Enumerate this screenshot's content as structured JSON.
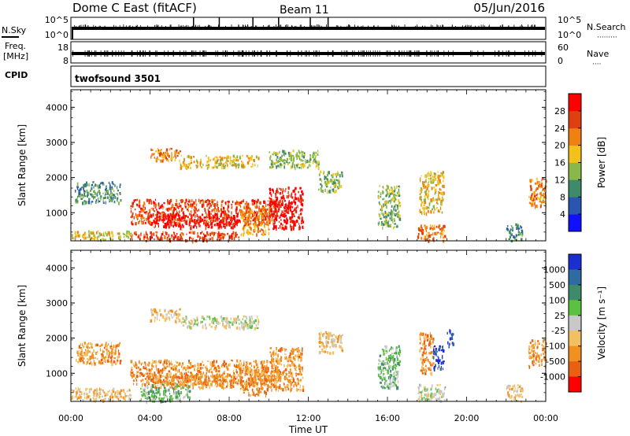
{
  "header": {
    "station": "Dome C East (fitACF)",
    "beam": "Beam 11",
    "date": "05/Jun/2016"
  },
  "top_panels": {
    "nsky_label": "N.Sky",
    "nsearch_label": "N.Search",
    "nsearch_dots": "·········",
    "noise_ticks_left": [
      "10^5",
      "10^0"
    ],
    "noise_ticks_right": [
      "10^5",
      "10^0"
    ],
    "freq_label": "Freq.",
    "freq_unit": "[MHz]",
    "freq_ticks": [
      "18",
      "8"
    ],
    "nave_label": "Nave",
    "nave_dots": "····",
    "nave_ticks": [
      "60",
      "0"
    ],
    "cpid_label": "CPID",
    "cpid_value": "twofsound 3501"
  },
  "chart_data": [
    {
      "type": "heatmap",
      "title": "",
      "xlabel": "Time UT",
      "ylabel": "Slant Range [km]",
      "parameter": "Power",
      "colorbar_label": "Power [dB]",
      "x_range_hours": [
        0,
        24
      ],
      "x_ticks": [
        "00:00",
        "04:00",
        "08:00",
        "12:00",
        "16:00",
        "20:00",
        "00:00"
      ],
      "ylim": [
        200,
        4500
      ],
      "y_ticks": [
        "1000",
        "2000",
        "3000",
        "4000"
      ],
      "colorbar_ticks": [
        "4",
        "8",
        "12",
        "16",
        "20",
        "24",
        "28"
      ],
      "colors": [
        "#1010ff",
        "#2a55b0",
        "#3f8a6a",
        "#88b84a",
        "#f2c21a",
        "#f08010",
        "#e04010",
        "#ff0000"
      ],
      "regions": [
        {
          "t": [
            3.0,
            10.4
          ],
          "r": [
            700,
            1400
          ],
          "level": 6
        },
        {
          "t": [
            4.0,
            8.4
          ],
          "r": [
            600,
            1000
          ],
          "level": 7
        },
        {
          "t": [
            10.0,
            11.7
          ],
          "r": [
            550,
            1750
          ],
          "level": 7
        },
        {
          "t": [
            0.0,
            3.0
          ],
          "r": [
            250,
            500
          ],
          "level": 4
        },
        {
          "t": [
            3.0,
            8.5
          ],
          "r": [
            220,
            480
          ],
          "level": 6
        },
        {
          "t": [
            4.0,
            5.5
          ],
          "r": [
            2500,
            2850
          ],
          "level": 5
        },
        {
          "t": [
            5.5,
            9.5
          ],
          "r": [
            2300,
            2650
          ],
          "level": 4
        },
        {
          "t": [
            0.2,
            2.5
          ],
          "r": [
            1300,
            1900
          ],
          "level": 2
        },
        {
          "t": [
            8.5,
            10.0
          ],
          "r": [
            400,
            1200
          ],
          "level": 5
        },
        {
          "t": [
            17.6,
            18.8
          ],
          "r": [
            1000,
            2200
          ],
          "level": 4
        },
        {
          "t": [
            15.5,
            16.6
          ],
          "r": [
            600,
            1800
          ],
          "level": 3
        },
        {
          "t": [
            17.5,
            18.9
          ],
          "r": [
            220,
            700
          ],
          "level": 5
        },
        {
          "t": [
            23.1,
            24.0
          ],
          "r": [
            1200,
            2000
          ],
          "level": 5
        },
        {
          "t": [
            22.0,
            22.8
          ],
          "r": [
            220,
            700
          ],
          "level": 2
        },
        {
          "t": [
            10.0,
            12.5
          ],
          "r": [
            2300,
            2800
          ],
          "level": 3
        },
        {
          "t": [
            12.5,
            13.7
          ],
          "r": [
            1600,
            2200
          ],
          "level": 3
        }
      ]
    },
    {
      "type": "heatmap",
      "title": "",
      "xlabel": "Time UT",
      "ylabel": "Slant Range [km]",
      "parameter": "Velocity",
      "colorbar_label": "Velocity [m s^-1]",
      "x_range_hours": [
        0,
        24
      ],
      "x_ticks": [
        "00:00",
        "04:00",
        "08:00",
        "12:00",
        "16:00",
        "20:00",
        "00:00"
      ],
      "ylim": [
        200,
        4500
      ],
      "y_ticks": [
        "1000",
        "2000",
        "3000",
        "4000"
      ],
      "colorbar_ticks": [
        "1000",
        "500",
        "100",
        "25",
        "-25",
        "-100",
        "-500",
        "-1000"
      ],
      "colors": [
        "#1a2fd0",
        "#2f6aa0",
        "#3f8a6a",
        "#5cc040",
        "#c8c8c8",
        "#f2c060",
        "#f09020",
        "#e86010",
        "#ff0000"
      ],
      "regions": [
        {
          "t": [
            3.0,
            10.4
          ],
          "r": [
            700,
            1400
          ],
          "level": 6
        },
        {
          "t": [
            4.0,
            8.4
          ],
          "r": [
            600,
            1000
          ],
          "level": 6
        },
        {
          "t": [
            10.0,
            11.7
          ],
          "r": [
            550,
            1750
          ],
          "level": 6
        },
        {
          "t": [
            3.5,
            6.0
          ],
          "r": [
            220,
            700
          ],
          "level": 3
        },
        {
          "t": [
            0.0,
            3.0
          ],
          "r": [
            250,
            600
          ],
          "level": 5
        },
        {
          "t": [
            4.0,
            5.5
          ],
          "r": [
            2500,
            2850
          ],
          "level": 5
        },
        {
          "t": [
            5.5,
            9.5
          ],
          "r": [
            2300,
            2650
          ],
          "level": 4
        },
        {
          "t": [
            0.2,
            2.5
          ],
          "r": [
            1300,
            1900
          ],
          "level": 6
        },
        {
          "t": [
            8.5,
            10.0
          ],
          "r": [
            400,
            1200
          ],
          "level": 6
        },
        {
          "t": [
            17.6,
            18.3
          ],
          "r": [
            1000,
            2200
          ],
          "level": 6
        },
        {
          "t": [
            18.3,
            18.8
          ],
          "r": [
            1100,
            1800
          ],
          "level": 0
        },
        {
          "t": [
            19.0,
            19.3
          ],
          "r": [
            1800,
            2300
          ],
          "level": 0
        },
        {
          "t": [
            15.5,
            16.6
          ],
          "r": [
            600,
            1800
          ],
          "level": 3
        },
        {
          "t": [
            17.5,
            18.9
          ],
          "r": [
            220,
            700
          ],
          "level": 4
        },
        {
          "t": [
            23.1,
            24.0
          ],
          "r": [
            1200,
            2000
          ],
          "level": 6
        },
        {
          "t": [
            22.0,
            22.8
          ],
          "r": [
            220,
            700
          ],
          "level": 5
        },
        {
          "t": [
            12.5,
            13.7
          ],
          "r": [
            1600,
            2200
          ],
          "level": 5
        }
      ]
    }
  ],
  "noise": {
    "spikes_hours": [
      6.2,
      7.5,
      9.2,
      10.5,
      12.1,
      13.0
    ]
  }
}
